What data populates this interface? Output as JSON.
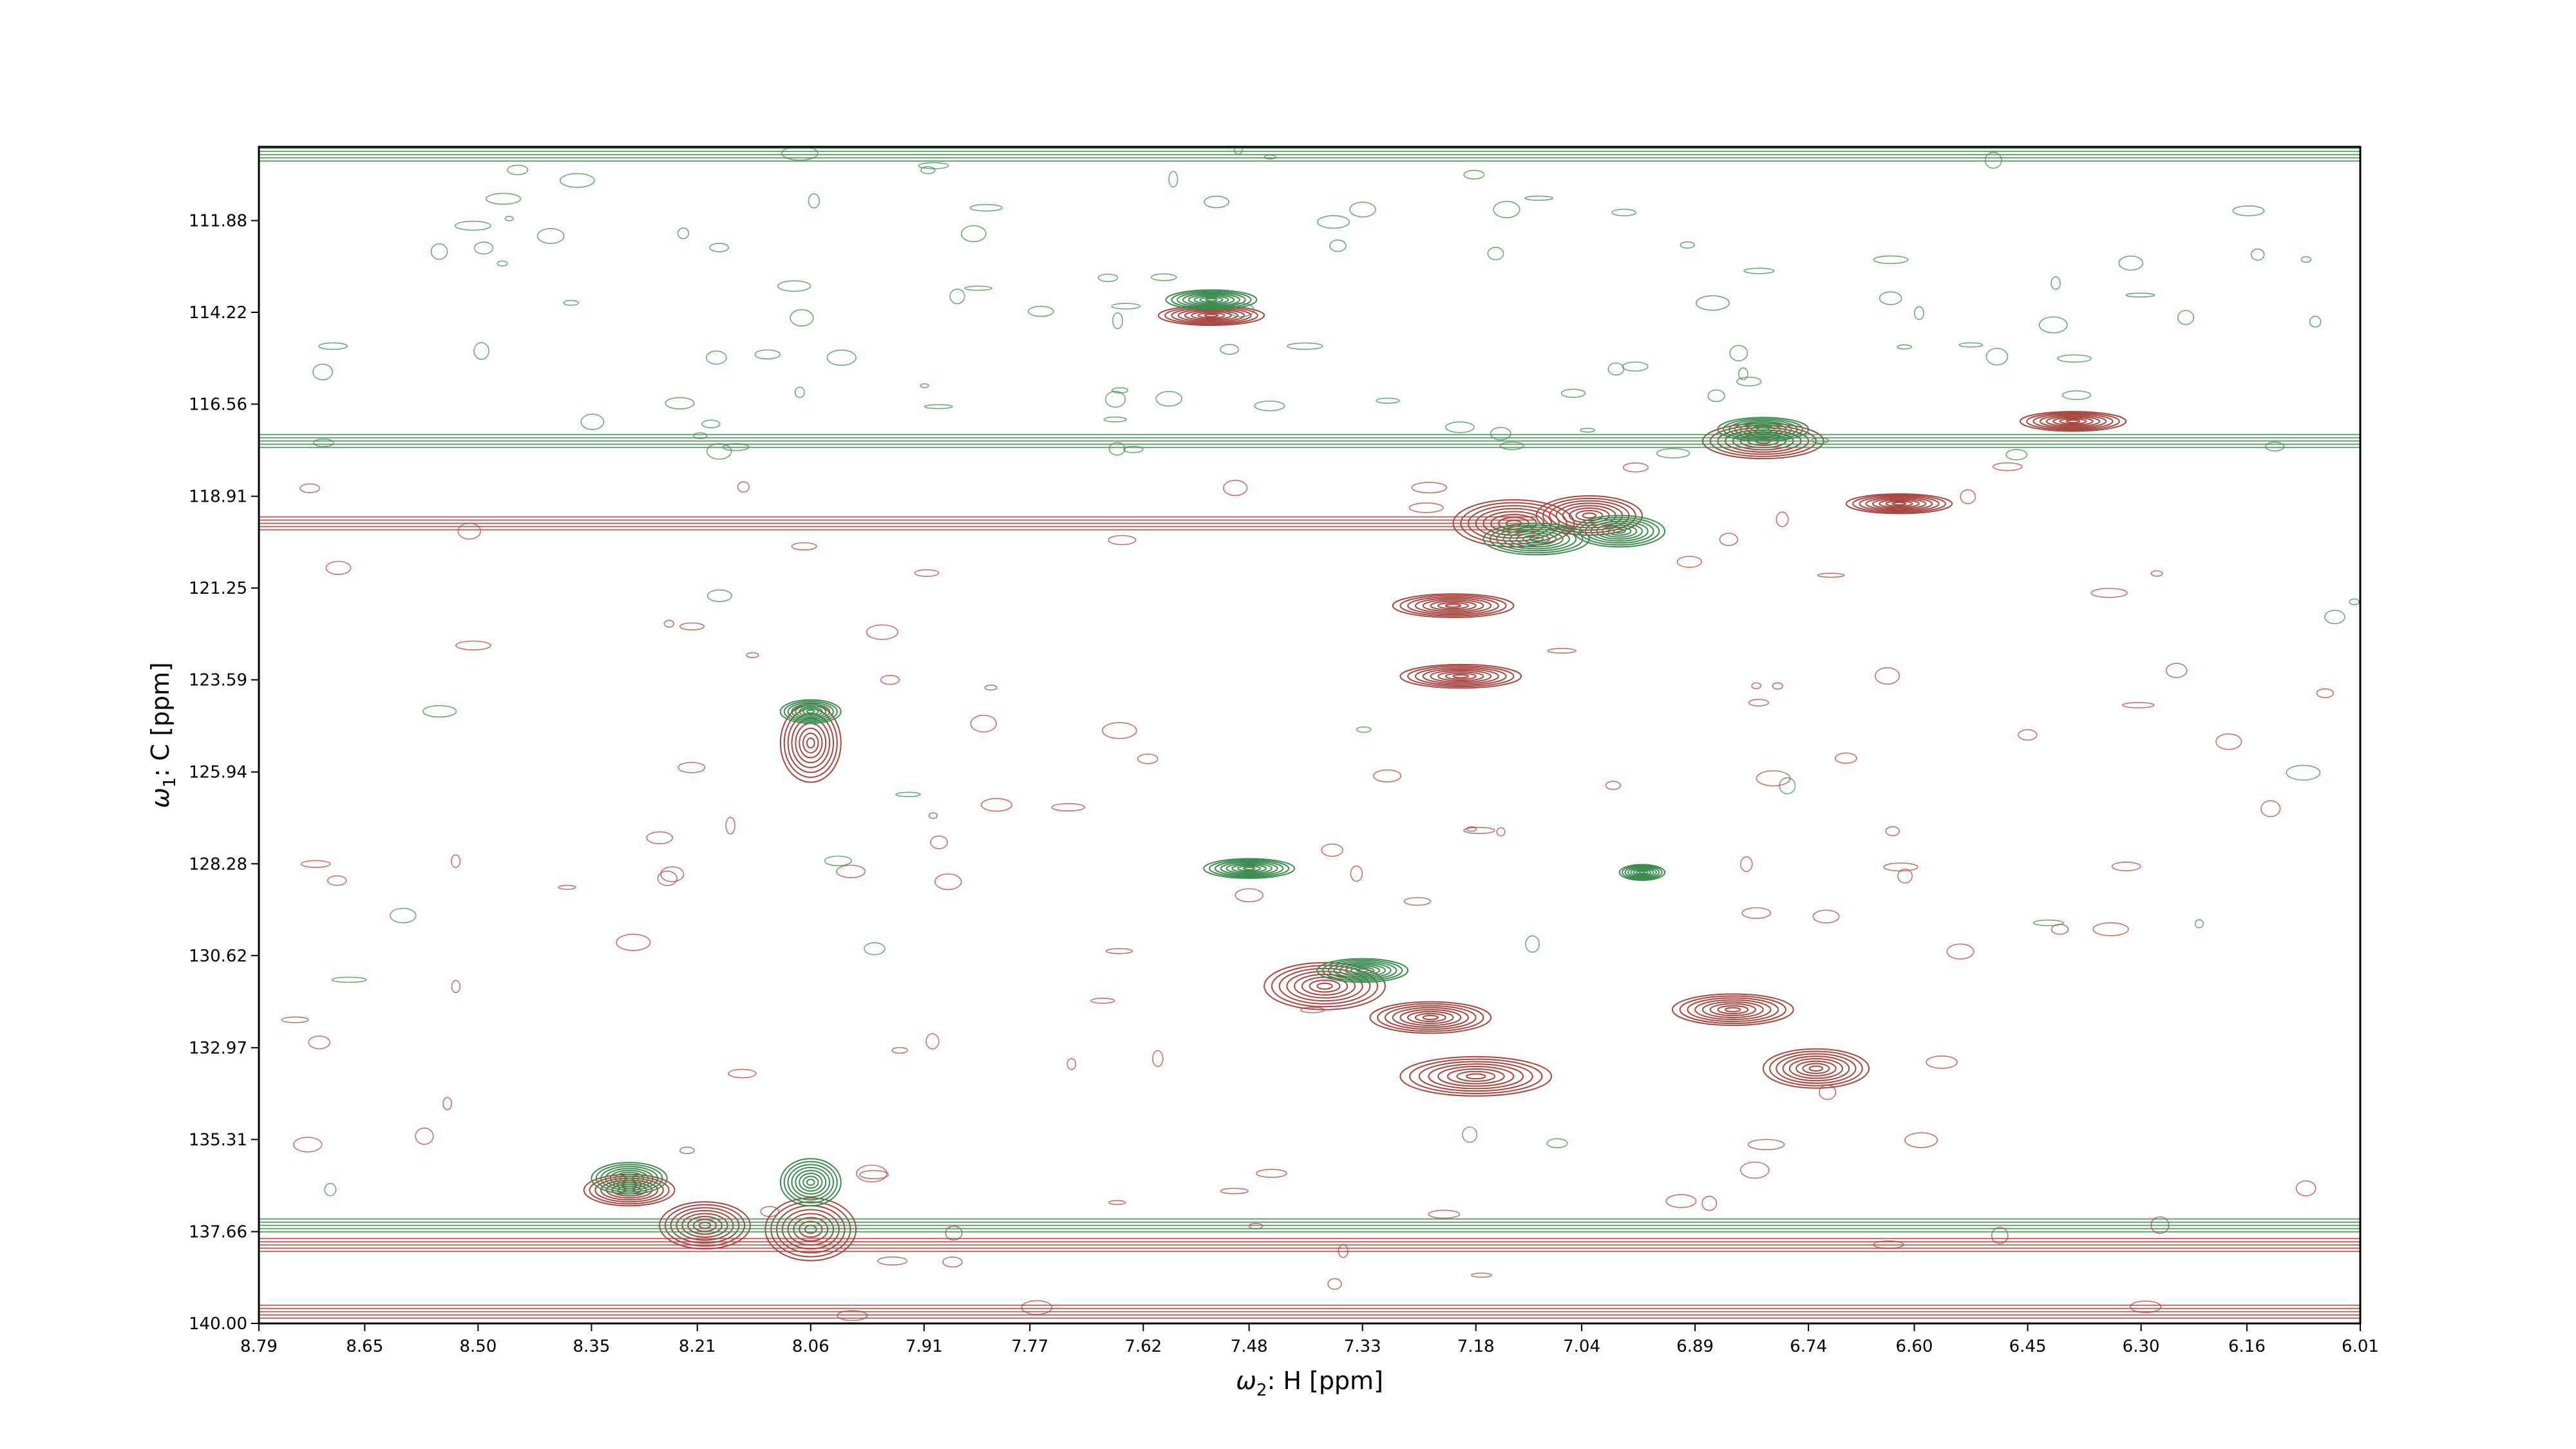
{
  "chart_data": {
    "type": "contour",
    "title": "",
    "xlabel": {
      "symbol": "ω",
      "sub": "2",
      "rest": ": H [ppm]"
    },
    "ylabel": {
      "symbol": "ω",
      "sub": "1",
      "rest": ": C [ppm]"
    },
    "xlim": [
      8.79,
      6.01
    ],
    "ylim": [
      140.0,
      110.0
    ],
    "x_ticks": [
      8.79,
      8.65,
      8.5,
      8.35,
      8.21,
      8.06,
      7.91,
      7.77,
      7.62,
      7.48,
      7.33,
      7.18,
      7.04,
      6.89,
      6.74,
      6.6,
      6.45,
      6.3,
      6.16,
      6.01
    ],
    "x_tick_labels": [
      "8.79",
      "8.65",
      "8.50",
      "8.35",
      "8.21",
      "8.06",
      "7.91",
      "7.77",
      "7.62",
      "7.48",
      "7.33",
      "7.18",
      "7.04",
      "6.89",
      "6.74",
      "6.60",
      "6.45",
      "6.30",
      "6.16",
      "6.01"
    ],
    "y_ticks": [
      111.88,
      114.22,
      116.56,
      118.91,
      121.25,
      123.59,
      125.94,
      128.28,
      130.62,
      132.97,
      135.31,
      137.66,
      140.0
    ],
    "y_tick_labels": [
      "111.88",
      "114.22",
      "116.56",
      "118.91",
      "121.25",
      "123.59",
      "125.94",
      "128.28",
      "130.62",
      "132.97",
      "135.31",
      "137.66",
      "140.00"
    ],
    "colors": {
      "positive": "#a8453f",
      "negative": "#3d8c4f"
    },
    "series": [
      {
        "sign": "positive",
        "peaks": [
          {
            "x": 7.53,
            "y": 114.3,
            "wx": 0.07,
            "wy": 0.25
          },
          {
            "x": 7.13,
            "y": 119.6,
            "wx": 0.08,
            "wy": 0.6
          },
          {
            "x": 7.03,
            "y": 119.4,
            "wx": 0.07,
            "wy": 0.5
          },
          {
            "x": 7.21,
            "y": 121.7,
            "wx": 0.08,
            "wy": 0.3
          },
          {
            "x": 7.2,
            "y": 123.5,
            "wx": 0.08,
            "wy": 0.3
          },
          {
            "x": 6.8,
            "y": 117.5,
            "wx": 0.08,
            "wy": 0.45
          },
          {
            "x": 6.62,
            "y": 119.1,
            "wx": 0.07,
            "wy": 0.25
          },
          {
            "x": 6.39,
            "y": 117.0,
            "wx": 0.07,
            "wy": 0.25
          },
          {
            "x": 7.38,
            "y": 131.4,
            "wx": 0.08,
            "wy": 0.6
          },
          {
            "x": 7.24,
            "y": 132.2,
            "wx": 0.08,
            "wy": 0.4
          },
          {
            "x": 7.18,
            "y": 133.7,
            "wx": 0.1,
            "wy": 0.5
          },
          {
            "x": 6.84,
            "y": 132.0,
            "wx": 0.08,
            "wy": 0.4
          },
          {
            "x": 6.73,
            "y": 133.5,
            "wx": 0.07,
            "wy": 0.5
          },
          {
            "x": 8.3,
            "y": 136.6,
            "wx": 0.06,
            "wy": 0.4
          },
          {
            "x": 8.2,
            "y": 137.5,
            "wx": 0.06,
            "wy": 0.6
          },
          {
            "x": 8.06,
            "y": 137.6,
            "wx": 0.06,
            "wy": 0.8
          },
          {
            "x": 8.06,
            "y": 125.2,
            "wx": 0.04,
            "wy": 1.0
          }
        ],
        "ridges": [
          {
            "y": 119.6,
            "x_from": 8.79,
            "x_to": 7.1
          },
          {
            "y": 138.0,
            "x_from": 8.79,
            "x_to": 6.01
          },
          {
            "y": 139.7,
            "x_from": 8.79,
            "x_to": 6.01
          }
        ]
      },
      {
        "sign": "negative",
        "peaks": [
          {
            "x": 7.53,
            "y": 113.9,
            "wx": 0.06,
            "wy": 0.25
          },
          {
            "x": 7.1,
            "y": 120.0,
            "wx": 0.07,
            "wy": 0.4
          },
          {
            "x": 6.99,
            "y": 119.8,
            "wx": 0.06,
            "wy": 0.4
          },
          {
            "x": 6.8,
            "y": 117.2,
            "wx": 0.06,
            "wy": 0.3
          },
          {
            "x": 7.48,
            "y": 128.4,
            "wx": 0.06,
            "wy": 0.25
          },
          {
            "x": 6.96,
            "y": 128.5,
            "wx": 0.03,
            "wy": 0.2
          },
          {
            "x": 7.33,
            "y": 131.0,
            "wx": 0.06,
            "wy": 0.3
          },
          {
            "x": 8.3,
            "y": 136.3,
            "wx": 0.05,
            "wy": 0.4
          },
          {
            "x": 8.06,
            "y": 136.4,
            "wx": 0.04,
            "wy": 0.6
          },
          {
            "x": 8.06,
            "y": 124.4,
            "wx": 0.04,
            "wy": 0.3
          }
        ],
        "ridges": [
          {
            "y": 110.2,
            "x_from": 8.79,
            "x_to": 6.01
          },
          {
            "y": 117.5,
            "x_from": 8.79,
            "x_to": 6.01
          },
          {
            "y": 137.5,
            "x_from": 8.79,
            "x_to": 6.01
          }
        ]
      }
    ],
    "grid": false,
    "legend": "none"
  }
}
